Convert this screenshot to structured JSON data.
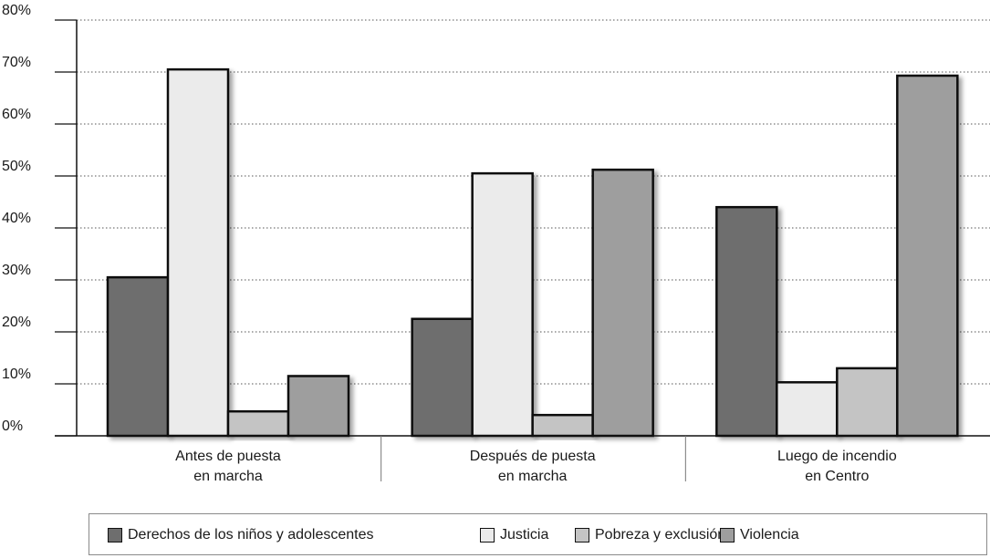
{
  "chart_data": {
    "type": "bar",
    "categories": [
      [
        "Antes de puesta",
        "en marcha"
      ],
      [
        "Después de puesta",
        "en marcha"
      ],
      [
        "Luego de incendio",
        "en Centro"
      ]
    ],
    "series": [
      {
        "name": "Derechos de los niños y adolescentes",
        "color": "#6e6e6e",
        "values": [
          30.5,
          22.5,
          44
        ]
      },
      {
        "name": "Justicia",
        "color": "#ebebeb",
        "values": [
          70.5,
          50.5,
          10.3
        ]
      },
      {
        "name": "Pobreza y exclusión",
        "color": "#c4c4c4",
        "values": [
          4.7,
          4.0,
          13.0
        ]
      },
      {
        "name": "Violencia",
        "color": "#9e9e9e",
        "values": [
          11.5,
          51.2,
          69.3
        ]
      }
    ],
    "ylim": [
      0,
      80
    ],
    "yticks": [
      "0%",
      "10%",
      "20%",
      "30%",
      "40%",
      "50%",
      "60%",
      "70%",
      "80%"
    ],
    "grid": "dotted horizontal",
    "legend": "bottom"
  }
}
